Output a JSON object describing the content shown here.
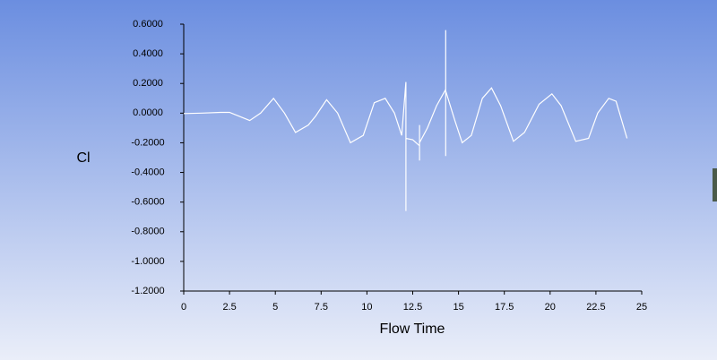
{
  "chart_data": {
    "type": "line",
    "x_label": "Flow Time",
    "y_label": "Cl",
    "xlim": [
      0,
      25
    ],
    "xticks": [
      0,
      2.5,
      5,
      7.5,
      10,
      12.5,
      15,
      17.5,
      20,
      22.5,
      25
    ],
    "ylim": [
      -1.2,
      0.6
    ],
    "yticks": [
      {
        "value": -1.2,
        "label": "-1.2000"
      },
      {
        "value": -1.0,
        "label": "-1.0000"
      },
      {
        "value": -0.8,
        "label": "-0.8000"
      },
      {
        "value": -0.6,
        "label": "-0.6000"
      },
      {
        "value": -0.4,
        "label": "-0.4000"
      },
      {
        "value": -0.2,
        "label": "-0.2000"
      },
      {
        "value": 0,
        "label": "0.0000"
      },
      {
        "value": 0.2,
        "label": "0.2000"
      },
      {
        "value": 0.4,
        "label": "0.4000"
      },
      {
        "value": 0.6,
        "label": "0.6000"
      }
    ],
    "series": [
      {
        "color": "#ffffff",
        "x": [
          0,
          1,
          2,
          2.5,
          3,
          3.6,
          4.2,
          4.9,
          5.5,
          6.1,
          6.8,
          7.2,
          7.8,
          8.4,
          9.1,
          9.8,
          10.4,
          11,
          11.5,
          11.9,
          12.13,
          12.13,
          12.13,
          12.5,
          12.87,
          12.87,
          12.87,
          12.87,
          13.3,
          13.8,
          14.3,
          14.3,
          14.3,
          14.3,
          14.8,
          15.2,
          15.7,
          16.3,
          16.8,
          17.3,
          18.0,
          18.6,
          19.4,
          20.1,
          20.6,
          21.4,
          22.1,
          22.6,
          23.2,
          23.6,
          24.2
        ],
        "values": [
          -0.003,
          0.0,
          0.005,
          0.005,
          -0.02,
          -0.05,
          0.0,
          0.1,
          0.0,
          -0.13,
          -0.08,
          -0.02,
          0.09,
          0.0,
          -0.2,
          -0.15,
          0.07,
          0.1,
          0.0,
          -0.15,
          0.21,
          -0.66,
          -0.17,
          -0.18,
          -0.22,
          -0.08,
          -0.32,
          -0.2,
          -0.1,
          0.05,
          0.16,
          0.56,
          -0.29,
          0.15,
          -0.05,
          -0.2,
          -0.15,
          0.1,
          0.17,
          0.05,
          -0.19,
          -0.13,
          0.06,
          0.13,
          0.05,
          -0.19,
          -0.17,
          0.0,
          0.1,
          0.08,
          -0.17
        ]
      }
    ]
  }
}
